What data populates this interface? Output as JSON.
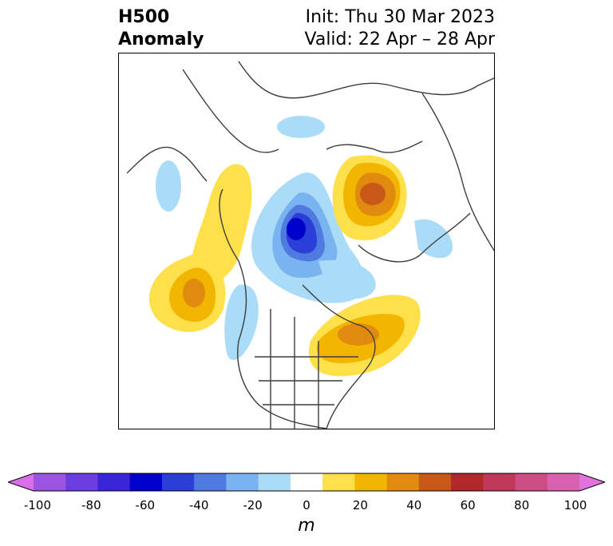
{
  "header": {
    "title_line1": "H500",
    "title_line2": "Anomaly",
    "init": "Init: Thu 30 Mar 2023",
    "valid": "Valid: 22 Apr – 28 Apr"
  },
  "colorbar": {
    "unit": "m",
    "levels": [
      -100,
      -90,
      -80,
      -70,
      -60,
      -50,
      -40,
      -30,
      -20,
      -10,
      10,
      20,
      30,
      40,
      50,
      60,
      70,
      80,
      90,
      100
    ],
    "colors": [
      "#d86ee8",
      "#9b55e0",
      "#6c3de0",
      "#3a24d8",
      "#0000cc",
      "#2a3ed8",
      "#4f7be0",
      "#7ab4f0",
      "#aadcf8",
      "#ffffff",
      "#fde04a",
      "#f2b600",
      "#e08a10",
      "#c85818",
      "#b02828",
      "#c0385a",
      "#cc4e84",
      "#d862b0",
      "#e272dc"
    ],
    "tick_labels": [
      "-100",
      "-80",
      "-60",
      "-40",
      "-20",
      "0",
      "20",
      "40",
      "60",
      "80",
      "100"
    ],
    "tick_values": [
      -100,
      -80,
      -60,
      -40,
      -20,
      0,
      20,
      40,
      60,
      80,
      100
    ]
  },
  "map": {
    "projection": "north-polar-stereographic",
    "anomaly_features": [
      {
        "name": "negative-anomaly-arctic",
        "sign": "negative",
        "peak_m": -60
      },
      {
        "name": "positive-anomaly-siberia",
        "sign": "positive",
        "peak_m": 50
      },
      {
        "name": "positive-anomaly-north-pacific",
        "sign": "positive",
        "peak_m": 30
      },
      {
        "name": "positive-anomaly-eastern-north-america",
        "sign": "positive",
        "peak_m": 40
      },
      {
        "name": "positive-anomaly-western-canada",
        "sign": "positive",
        "peak_m": 20
      },
      {
        "name": "negative-anomaly-western-north-america",
        "sign": "negative",
        "peak_m": -20
      },
      {
        "name": "negative-anomaly-europe",
        "sign": "negative",
        "peak_m": -20
      }
    ]
  }
}
